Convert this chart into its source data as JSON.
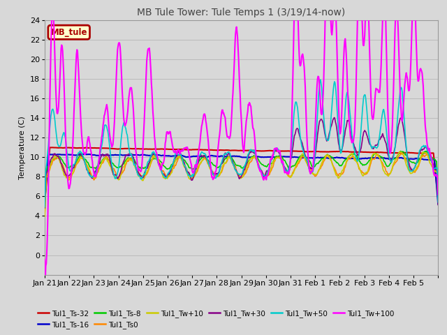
{
  "title": "MB Tule Tower: Tule Temps 1 (3/19/14-now)",
  "ylabel": "Temperature (C)",
  "ylim": [
    -2,
    24
  ],
  "yticks": [
    0,
    2,
    4,
    6,
    8,
    10,
    12,
    14,
    16,
    18,
    20,
    22,
    24
  ],
  "x_labels": [
    "Jan 21",
    "Jan 22",
    "Jan 23",
    "Jan 24",
    "Jan 25",
    "Jan 26",
    "Jan 27",
    "Jan 28",
    "Jan 29",
    "Jan 30",
    "Jan 31",
    "Feb 1",
    "Feb 2",
    "Feb 3",
    "Feb 4",
    "Feb 5"
  ],
  "legend_box_label": "MB_tule",
  "legend_box_color": "#aa0000",
  "legend_box_bg": "#ffffcc",
  "series": [
    {
      "label": "Tul1_Ts-32",
      "color": "#cc0000",
      "lw": 1.5
    },
    {
      "label": "Tul1_Ts-16",
      "color": "#0000cc",
      "lw": 1.5
    },
    {
      "label": "Tul1_Ts-8",
      "color": "#00cc00",
      "lw": 1.2
    },
    {
      "label": "Tul1_Ts0",
      "color": "#ff8800",
      "lw": 1.2
    },
    {
      "label": "Tul1_Tw+10",
      "color": "#cccc00",
      "lw": 1.2
    },
    {
      "label": "Tul1_Tw+30",
      "color": "#880088",
      "lw": 1.2
    },
    {
      "label": "Tul1_Tw+50",
      "color": "#00cccc",
      "lw": 1.2
    },
    {
      "label": "Tul1_Tw+100",
      "color": "#ff00ff",
      "lw": 1.5
    }
  ],
  "bg_color": "#d8d8d8",
  "plot_bg_color": "#d8d8d8",
  "grid_color": "#bbbbbb",
  "title_fontsize": 10,
  "axis_fontsize": 8,
  "tick_fontsize": 8
}
